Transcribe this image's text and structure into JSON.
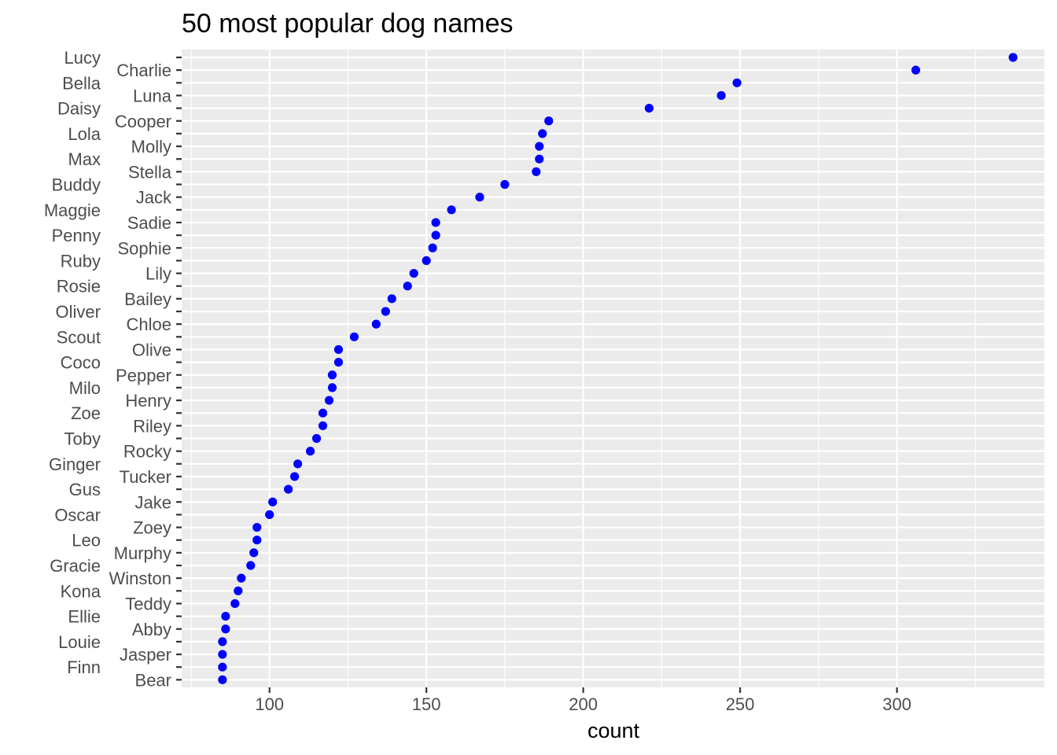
{
  "chart_data": {
    "type": "scatter",
    "title": "50 most popular dog names",
    "xlabel": "count",
    "ylabel": "",
    "xlim": [
      72,
      347
    ],
    "x_ticks": [
      100,
      150,
      200,
      250,
      300
    ],
    "grid": true,
    "legend": "none",
    "point_color": "#0000ff",
    "panel_background": "#ebebeb",
    "grid_color": "#ffffff",
    "series": [
      {
        "names": [
          "Lucy",
          "Charlie",
          "Bella",
          "Luna",
          "Daisy",
          "Cooper",
          "Lola",
          "Molly",
          "Max",
          "Stella",
          "Buddy",
          "Jack",
          "Maggie",
          "Sadie",
          "Penny",
          "Sophie",
          "Ruby",
          "Lily",
          "Rosie",
          "Bailey",
          "Oliver",
          "Chloe",
          "Scout",
          "Olive",
          "Coco",
          "Pepper",
          "Milo",
          "Henry",
          "Zoe",
          "Riley",
          "Toby",
          "Rocky",
          "Ginger",
          "Tucker",
          "Gus",
          "Jake",
          "Oscar",
          "Zoey",
          "Leo",
          "Murphy",
          "Gracie",
          "Winston",
          "Kona",
          "Teddy",
          "Ellie",
          "Abby",
          "Louie",
          "Jasper",
          "Finn",
          "Bear"
        ],
        "values": [
          337,
          306,
          249,
          244,
          221,
          189,
          187,
          186,
          186,
          185,
          175,
          167,
          158,
          153,
          153,
          152,
          150,
          146,
          144,
          139,
          137,
          134,
          127,
          122,
          122,
          120,
          120,
          119,
          117,
          117,
          115,
          113,
          109,
          108,
          106,
          101,
          100,
          96,
          96,
          95,
          94,
          91,
          90,
          89,
          86,
          86,
          85,
          85,
          85,
          85
        ]
      }
    ]
  }
}
